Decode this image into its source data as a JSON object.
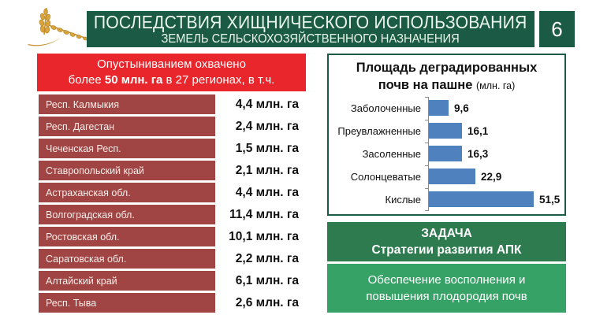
{
  "header": {
    "title_line1": "ПОСЛЕДСТВИЯ ХИЩНИЧЕСКОГО ИСПОЛЬЗОВАНИЯ",
    "title_line2": "ЗЕМЕЛЬ СЕЛЬСКОХОЗЯЙСТВЕННОГО НАЗНАЧЕНИЯ",
    "page_number": "6"
  },
  "desertification": {
    "headline_line1": "Опустыниванием охвачено",
    "headline_line2_prefix": "более ",
    "headline_line2_bold": "50 млн. га",
    "headline_line2_suffix": " в 27 регионах, в т.ч.",
    "regions": [
      {
        "name": "Респ. Калмыкия",
        "value": "4,4 млн. га"
      },
      {
        "name": "Респ. Дагестан",
        "value": "2,4 млн. га"
      },
      {
        "name": "Чеченская Респ.",
        "value": "1,5 млн. га"
      },
      {
        "name": "Ставропольский край",
        "value": "2,1 млн. га"
      },
      {
        "name": "Астраханская обл.",
        "value": "4,4 млн. га"
      },
      {
        "name": "Волгоградская обл.",
        "value": "11,4 млн. га"
      },
      {
        "name": "Ростовская обл.",
        "value": "10,1 млн. га"
      },
      {
        "name": "Саратовская обл.",
        "value": "2,2 млн. га"
      },
      {
        "name": "Алтайский край",
        "value": "6,1 млн. га"
      },
      {
        "name": "Респ. Тыва",
        "value": "2,6 млн. га"
      }
    ]
  },
  "chart_data": {
    "type": "bar",
    "orientation": "horizontal",
    "title": "Площадь деградированных почв на пашне",
    "title_line1": "Площадь деградированных",
    "title_line2": "почв на пашне ",
    "unit": "(млн. га)",
    "categories": [
      "Заболоченные",
      "Преувлажненные",
      "Засоленные",
      "Солонцеватые",
      "Кислые"
    ],
    "values": [
      9.6,
      16.1,
      16.3,
      22.9,
      51.5
    ],
    "value_labels": [
      "9,6",
      "16,1",
      "16,3",
      "22,9",
      "51,5"
    ],
    "xlim": [
      0,
      55
    ],
    "grid": false,
    "legend": false,
    "bar_color": "#4E81BD"
  },
  "task": {
    "line1": "ЗАДАЧА",
    "line2": "Стратегии развития АПК"
  },
  "goal": {
    "line1": "Обеспечение восполнения и",
    "line2": "повышения плодородия почв"
  },
  "colors": {
    "header_green": "#1B5B45",
    "alert_red": "#E8262B",
    "row_dark_red": "#A04543",
    "bar_blue": "#4E81BD",
    "task_green": "#2E7B50",
    "goal_green": "#36A266",
    "wheat_gold": "#D9A43B"
  },
  "icons": {
    "wheat": "wheat-ears-icon"
  }
}
